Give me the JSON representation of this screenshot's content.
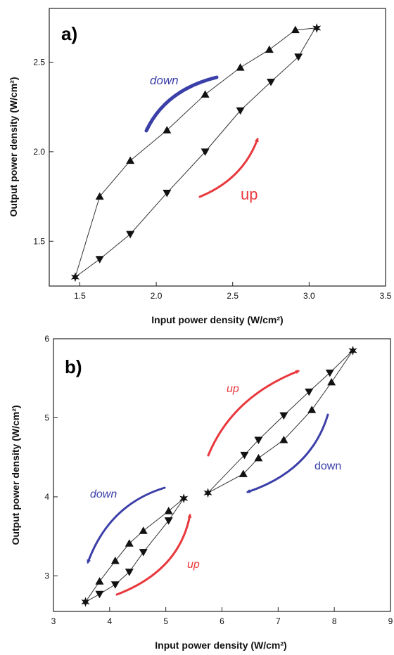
{
  "chart_data": [
    {
      "type": "line",
      "panel_label": "a)",
      "xlabel": "Input power density (W/cm²)",
      "ylabel": "Output power density (W/cm²)",
      "xlim": [
        1.3,
        3.5
      ],
      "ylim": [
        1.25,
        2.8
      ],
      "xticks": [
        1.5,
        2.0,
        2.5,
        3.0,
        3.5
      ],
      "yticks": [
        1.5,
        2.0,
        2.5
      ],
      "x_tick_labels": [
        "1.5",
        "2.0",
        "2.5",
        "3.0",
        "3.5"
      ],
      "y_tick_labels": [
        "1.5",
        "2.0",
        "2.5"
      ],
      "series": [
        {
          "marker": "triangle-down",
          "x": [
            1.47,
            1.63,
            1.83,
            2.07,
            2.32,
            2.55,
            2.75,
            2.93,
            3.04
          ],
          "y": [
            1.3,
            1.4,
            1.54,
            1.77,
            2.0,
            2.23,
            2.39,
            2.53,
            2.69
          ]
        },
        {
          "marker": "triangle-up",
          "x": [
            3.04,
            2.91,
            2.74,
            2.55,
            2.32,
            2.07,
            1.83,
            1.63,
            1.47
          ],
          "y": [
            2.69,
            2.68,
            2.57,
            2.47,
            2.32,
            2.12,
            1.95,
            1.75,
            1.3
          ]
        }
      ],
      "endpoints": [
        {
          "marker": "star",
          "x": 1.47,
          "y": 1.3
        },
        {
          "marker": "star",
          "x": 3.05,
          "y": 2.69
        }
      ],
      "annotations": [
        {
          "text": "down",
          "color": "#3b3fa8",
          "italic": true
        },
        {
          "text": "up",
          "color": "#e8383d",
          "italic": false
        }
      ]
    },
    {
      "type": "line",
      "panel_label": "b)",
      "xlabel": "Input power density (W/cm²)",
      "ylabel": "Output power density (W/cm²)",
      "xlim": [
        3,
        9
      ],
      "ylim": [
        2.55,
        6
      ],
      "xticks": [
        3,
        4,
        5,
        6,
        7,
        8,
        9
      ],
      "yticks": [
        3,
        4,
        5,
        6
      ],
      "x_tick_labels": [
        "3",
        "4",
        "5",
        "6",
        "7",
        "8",
        "9"
      ],
      "y_tick_labels": [
        "3",
        "4",
        "5",
        "6"
      ],
      "series": [
        {
          "marker": "triangle-down",
          "x": [
            3.57,
            3.82,
            4.1,
            4.35,
            4.6,
            5.05,
            5.32
          ],
          "y": [
            2.67,
            2.77,
            2.89,
            3.05,
            3.3,
            3.7,
            3.98
          ]
        },
        {
          "marker": "triangle-up",
          "x": [
            5.32,
            5.05,
            4.6,
            4.35,
            4.1,
            3.82,
            3.57
          ],
          "y": [
            3.98,
            3.82,
            3.57,
            3.41,
            3.19,
            2.93,
            2.67
          ]
        },
        {
          "marker": "triangle-down",
          "x": [
            5.75,
            6.4,
            6.65,
            7.1,
            7.55,
            7.92,
            8.33
          ],
          "y": [
            4.05,
            4.53,
            4.72,
            5.03,
            5.33,
            5.57,
            5.85
          ]
        },
        {
          "marker": "triangle-up",
          "x": [
            8.33,
            7.95,
            7.6,
            7.1,
            6.65,
            6.38,
            5.75
          ],
          "y": [
            5.85,
            5.45,
            5.1,
            4.72,
            4.49,
            4.29,
            4.05
          ]
        }
      ],
      "endpoints": [
        {
          "marker": "star",
          "x": 3.57,
          "y": 2.67
        },
        {
          "marker": "star",
          "x": 5.32,
          "y": 3.98
        },
        {
          "marker": "star",
          "x": 5.75,
          "y": 4.05
        },
        {
          "marker": "star",
          "x": 8.33,
          "y": 5.85
        }
      ],
      "annotations": [
        {
          "text": "up",
          "color": "#e8383d",
          "italic": true
        },
        {
          "text": "down",
          "color": "#3b3fa8",
          "italic": false
        },
        {
          "text": "down",
          "color": "#3b3fa8",
          "italic": true
        },
        {
          "text": "up",
          "color": "#e8383d",
          "italic": true
        }
      ]
    }
  ]
}
